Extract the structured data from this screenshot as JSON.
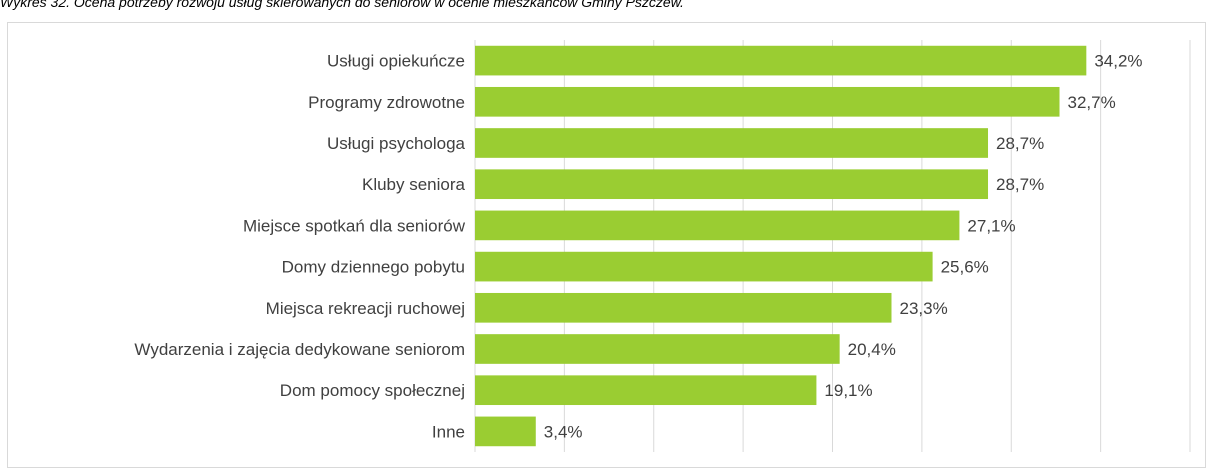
{
  "caption": "Wykres 32. Ocena potrzeby rozwoju usług skierowanych do seniorów w ocenie mieszkańców Gminy Pszczew.",
  "chart_data": {
    "type": "bar",
    "orientation": "horizontal",
    "title": "",
    "xlabel": "",
    "ylabel": "",
    "categories": [
      "Usługi opiekuńcze",
      "Programy zdrowotne",
      "Usługi psychologa",
      "Kluby seniora",
      "Miejsce spotkań dla seniorów",
      "Domy dziennego pobytu",
      "Miejsca rekreacji ruchowej",
      "Wydarzenia i zajęcia dedykowane seniorom",
      "Dom pomocy społecznej",
      "Inne"
    ],
    "values": [
      34.2,
      32.7,
      28.7,
      28.7,
      27.1,
      25.6,
      23.3,
      20.4,
      19.1,
      3.4
    ],
    "value_labels": [
      "34,2%",
      "32,7%",
      "28,7%",
      "28,7%",
      "27,1%",
      "25,6%",
      "23,3%",
      "20,4%",
      "19,1%",
      "3,4%"
    ],
    "xlim": [
      0,
      40
    ],
    "grid": true,
    "legend": "none",
    "bar_color": "#9acd32",
    "grid_color": "#d9d9d9"
  }
}
